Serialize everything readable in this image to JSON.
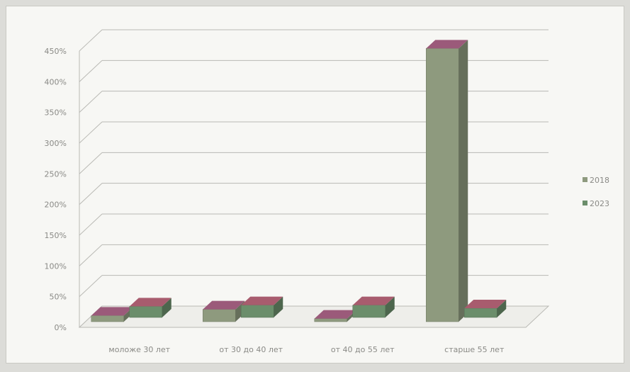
{
  "chart_data": {
    "type": "bar",
    "title": "",
    "xlabel": "",
    "ylabel": "",
    "categories": [
      "моложе 30 лет",
      "от 30 до 40 лет",
      "от 40 до 55 лет",
      "старше 55 лет"
    ],
    "series": [
      {
        "name": "2018",
        "values": [
          10,
          20,
          5,
          445
        ],
        "color": "#8e9a7e"
      },
      {
        "name": "2023",
        "values": [
          18,
          20,
          20,
          15
        ],
        "color": "#6b8e6b"
      }
    ],
    "y_ticks": [
      "0%",
      "50%",
      "100%",
      "150%",
      "200%",
      "250%",
      "300%",
      "350%",
      "400%",
      "450%"
    ],
    "ylim": [
      0,
      450
    ],
    "grid": true,
    "legend": "right",
    "bar_3d": true
  }
}
